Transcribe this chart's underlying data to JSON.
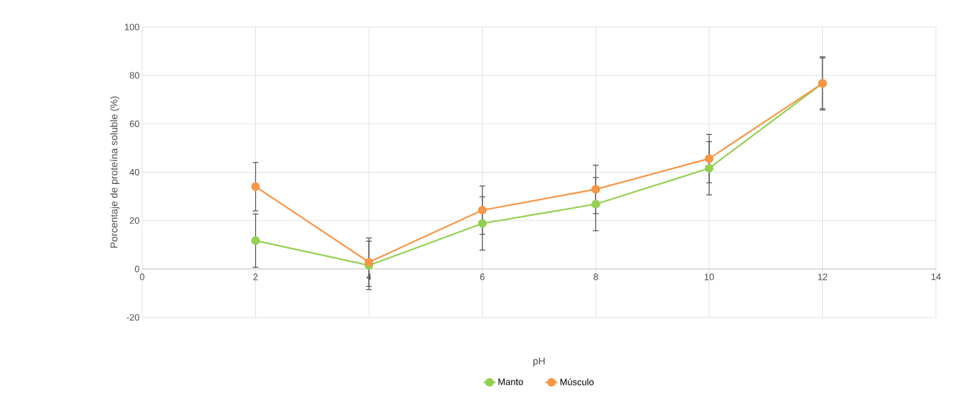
{
  "chart_data": {
    "type": "line",
    "xlabel": "pH",
    "ylabel": "Porcentaje de proteína soluble (%)",
    "x": [
      2,
      4,
      6,
      8,
      10,
      12
    ],
    "series": [
      {
        "name": "Manto",
        "color": "#92d050",
        "values": [
          11.7,
          1.5,
          18.8,
          26.8,
          41.6,
          76.7
        ],
        "errors": [
          11,
          10,
          11,
          11,
          11,
          10.5
        ]
      },
      {
        "name": "Músculo",
        "color": "#f79646",
        "values": [
          34,
          2.8,
          24.3,
          32.9,
          45.6,
          76.7
        ],
        "errors": [
          10,
          10,
          10,
          10,
          10,
          11
        ]
      }
    ],
    "xlim": [
      0,
      14
    ],
    "xticks": [
      0,
      2,
      4,
      6,
      8,
      10,
      12,
      14
    ],
    "ylim": [
      -20,
      100
    ],
    "yticks": [
      -20,
      0,
      20,
      40,
      60,
      80,
      100
    ],
    "grid": true,
    "legend": "bottom",
    "marker": "circle",
    "line_style": "solid"
  }
}
